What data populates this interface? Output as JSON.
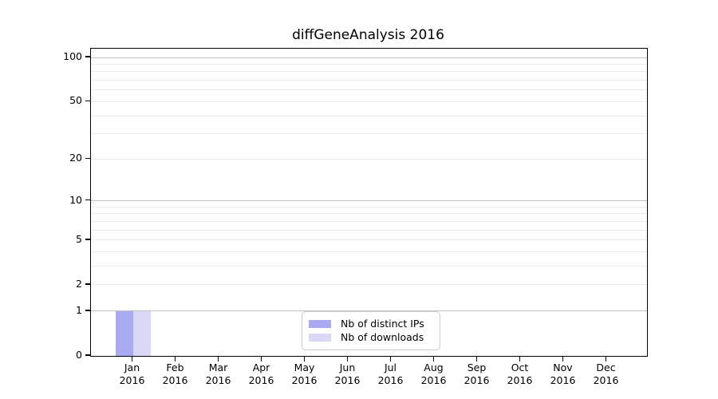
{
  "chart_data": {
    "type": "bar",
    "title": "diffGeneAnalysis 2016",
    "yscale": "log1p",
    "ylim": [
      0,
      115
    ],
    "grid": "horizontal",
    "legend_position": "lower center",
    "categories": [
      "Jan 2016",
      "Feb 2016",
      "Mar 2016",
      "Apr 2016",
      "May 2016",
      "Jun 2016",
      "Jul 2016",
      "Aug 2016",
      "Sep 2016",
      "Oct 2016",
      "Nov 2016",
      "Dec 2016"
    ],
    "series": [
      {
        "name": "Nb of distinct IPs",
        "color": "#aaaaf2",
        "values": [
          1,
          0,
          0,
          0,
          0,
          0,
          0,
          0,
          0,
          0,
          0,
          0
        ]
      },
      {
        "name": "Nb of downloads",
        "color": "#d9d9f7",
        "values": [
          1,
          0,
          0,
          0,
          0,
          0,
          0,
          0,
          0,
          0,
          0,
          0
        ]
      }
    ],
    "y_axis": {
      "ticks": [
        {
          "value": 0,
          "label": "0"
        },
        {
          "value": 1,
          "label": "1"
        },
        {
          "value": 2,
          "label": "2"
        },
        {
          "value": 5,
          "label": "5"
        },
        {
          "value": 10,
          "label": "10"
        },
        {
          "value": 20,
          "label": "20"
        },
        {
          "value": 50,
          "label": "50"
        },
        {
          "value": 100,
          "label": "100"
        }
      ],
      "minor_grid_values": [
        2,
        3,
        4,
        5,
        6,
        7,
        8,
        9,
        20,
        30,
        40,
        50,
        60,
        70,
        80,
        90
      ],
      "major_grid_values": [
        1,
        10,
        100
      ]
    },
    "x_axis": {
      "ticks": [
        {
          "month": "Jan",
          "year": "2016"
        },
        {
          "month": "Feb",
          "year": "2016"
        },
        {
          "month": "Mar",
          "year": "2016"
        },
        {
          "month": "Apr",
          "year": "2016"
        },
        {
          "month": "May",
          "year": "2016"
        },
        {
          "month": "Jun",
          "year": "2016"
        },
        {
          "month": "Jul",
          "year": "2016"
        },
        {
          "month": "Aug",
          "year": "2016"
        },
        {
          "month": "Sep",
          "year": "2016"
        },
        {
          "month": "Oct",
          "year": "2016"
        },
        {
          "month": "Nov",
          "year": "2016"
        },
        {
          "month": "Dec",
          "year": "2016"
        }
      ]
    },
    "colors": {
      "grid_minor": "#ececec",
      "grid_major": "#c2c2c2",
      "axis": "#000000",
      "text": "#000000",
      "legend_border": "#cccccc"
    }
  }
}
